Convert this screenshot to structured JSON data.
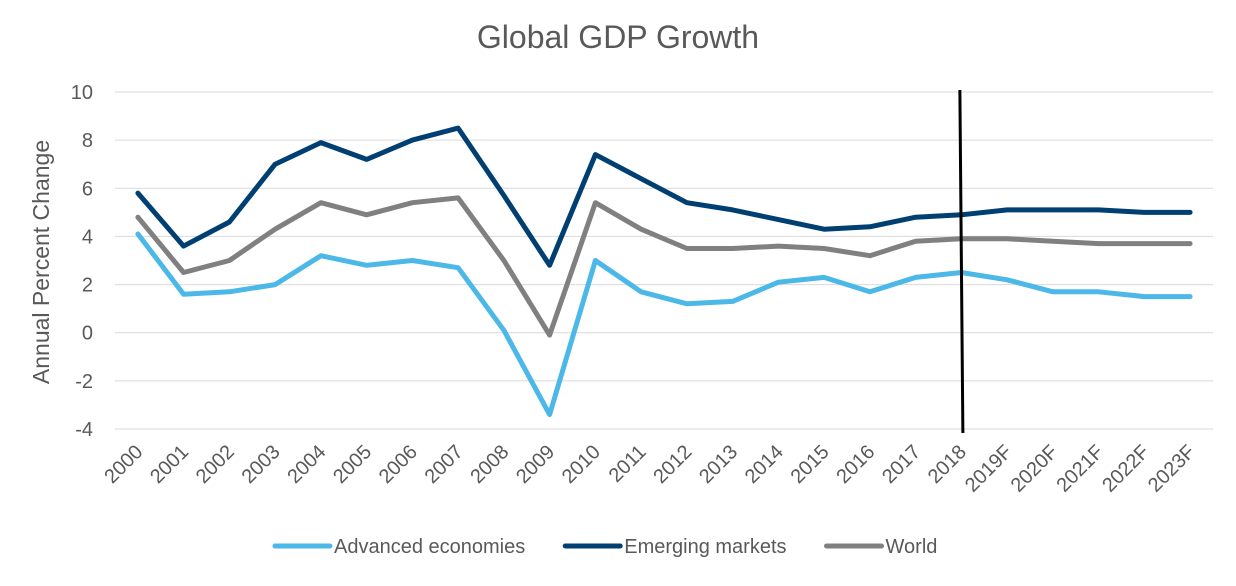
{
  "chart_data": {
    "type": "line",
    "title": "Global GDP Growth",
    "xlabel": "",
    "ylabel": "Annual Percent Change",
    "ylim": [
      -4,
      10
    ],
    "yticks": [
      "10",
      "8",
      "6",
      "4",
      "2",
      "0",
      "-2",
      "-4"
    ],
    "grid": true,
    "legend_position": "bottom",
    "categories": [
      "2000",
      "2001",
      "2002",
      "2003",
      "2004",
      "2005",
      "2006",
      "2007",
      "2008",
      "2009",
      "2010",
      "2011",
      "2012",
      "2013",
      "2014",
      "2015",
      "2016",
      "2017",
      "2018",
      "2019F",
      "2020F",
      "2021F",
      "2022F",
      "2023F"
    ],
    "series": [
      {
        "name": "Advanced economies",
        "color": "#4bb8e8",
        "values": [
          4.1,
          1.6,
          1.7,
          2.0,
          3.2,
          2.8,
          3.0,
          2.7,
          0.1,
          -3.4,
          3.0,
          1.7,
          1.2,
          1.3,
          2.1,
          2.3,
          1.7,
          2.3,
          2.5,
          2.2,
          1.7,
          1.7,
          1.5,
          1.5
        ]
      },
      {
        "name": "Emerging markets",
        "color": "#003f72",
        "values": [
          5.8,
          3.6,
          4.6,
          7.0,
          7.9,
          7.2,
          8.0,
          8.5,
          5.7,
          2.8,
          7.4,
          6.4,
          5.4,
          5.1,
          4.7,
          4.3,
          4.4,
          4.8,
          4.9,
          5.1,
          5.1,
          5.1,
          5.0,
          5.0
        ]
      },
      {
        "name": "World",
        "color": "#808080",
        "values": [
          4.8,
          2.5,
          3.0,
          4.3,
          5.4,
          4.9,
          5.4,
          5.6,
          3.0,
          -0.1,
          5.4,
          4.3,
          3.5,
          3.5,
          3.6,
          3.5,
          3.2,
          3.8,
          3.9,
          3.9,
          3.8,
          3.7,
          3.7,
          3.7
        ]
      }
    ],
    "annotations": [
      {
        "type": "vertical-line",
        "at": "2018",
        "color": "#000000"
      }
    ]
  }
}
